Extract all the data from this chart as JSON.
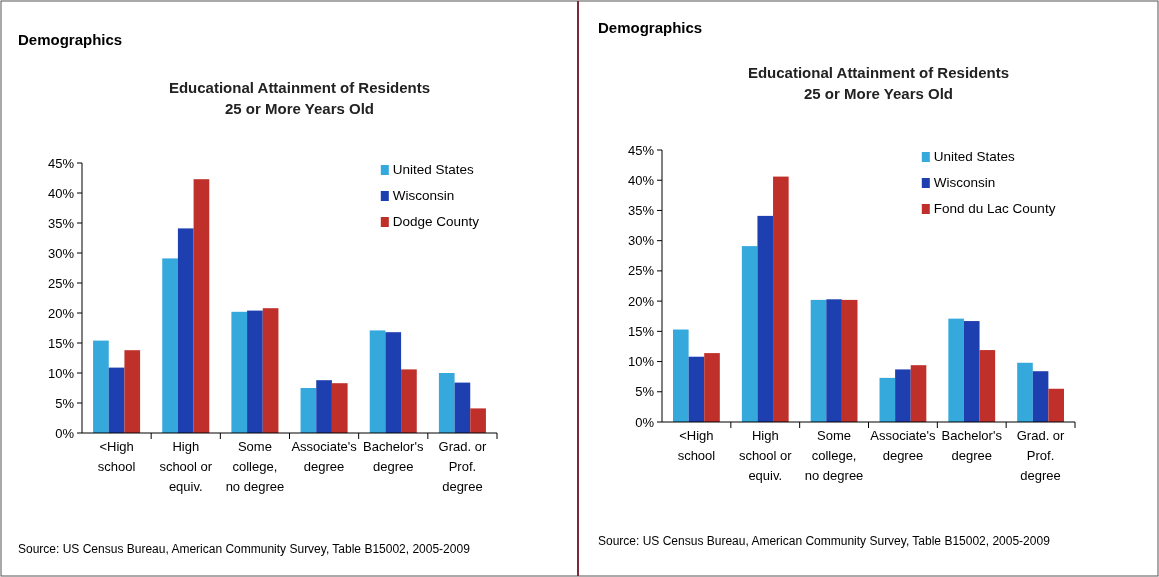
{
  "chart_data": [
    {
      "type": "bar",
      "subtitle": "Demographics",
      "title": "Educational Attainment of Residents\n25 or More Years Old",
      "categories": [
        "<High school",
        "High school or equiv.",
        "Some college, no degree",
        "Associate's degree",
        "Bachelor's degree",
        "Grad. or Prof. degree"
      ],
      "series": [
        {
          "name": "United States",
          "color": "#35a9dc",
          "values": [
            15.4,
            29.1,
            20.2,
            7.5,
            17.1,
            10.0
          ]
        },
        {
          "name": "Wisconsin",
          "color": "#1d3faf",
          "values": [
            10.9,
            34.1,
            20.4,
            8.8,
            16.8,
            8.4
          ]
        },
        {
          "name": "Dodge County",
          "color": "#c0302a",
          "values": [
            13.8,
            42.3,
            20.8,
            8.3,
            10.6,
            4.1
          ]
        }
      ],
      "ylim": [
        0,
        45
      ],
      "yticks": [
        {
          "value": 0,
          "label": "0%"
        },
        {
          "value": 5,
          "label": "5%"
        },
        {
          "value": 10,
          "label": "10%"
        },
        {
          "value": 15,
          "label": "15%"
        },
        {
          "value": 20,
          "label": "20%"
        },
        {
          "value": 25,
          "label": "25%"
        },
        {
          "value": 30,
          "label": "30%"
        },
        {
          "value": 35,
          "label": "35%"
        },
        {
          "value": 40,
          "label": "40%"
        },
        {
          "value": 45,
          "label": "45%"
        }
      ],
      "grid": false,
      "legend": "top right",
      "annotations": [
        "Source: US Census Bureau, American Community Survey, Table B15002, 2005-2009"
      ]
    },
    {
      "type": "bar",
      "subtitle": "Demographics",
      "title": "Educational Attainment of Residents\n25 or More Years Old",
      "categories": [
        "<High school",
        "High school or equiv.",
        "Some college, no degree",
        "Associate's degree",
        "Bachelor's degree",
        "Grad. or Prof. degree"
      ],
      "series": [
        {
          "name": "United States",
          "color": "#35a9dc",
          "values": [
            15.3,
            29.1,
            20.2,
            7.3,
            17.1,
            9.8
          ]
        },
        {
          "name": "Wisconsin",
          "color": "#1d3faf",
          "values": [
            10.8,
            34.1,
            20.3,
            8.7,
            16.7,
            8.4
          ]
        },
        {
          "name": "Fond du Lac County",
          "color": "#c0302a",
          "values": [
            11.4,
            40.6,
            20.2,
            9.4,
            11.9,
            5.5
          ]
        }
      ],
      "ylim": [
        0,
        45
      ],
      "yticks": [
        {
          "value": 0,
          "label": "0%"
        },
        {
          "value": 5,
          "label": "5%"
        },
        {
          "value": 10,
          "label": "10%"
        },
        {
          "value": 15,
          "label": "15%"
        },
        {
          "value": 20,
          "label": "20%"
        },
        {
          "value": 25,
          "label": "25%"
        },
        {
          "value": 30,
          "label": "30%"
        },
        {
          "value": 35,
          "label": "35%"
        },
        {
          "value": 40,
          "label": "40%"
        },
        {
          "value": 45,
          "label": "45%"
        }
      ],
      "grid": false,
      "legend": "top right",
      "annotations": [
        "Source: US Census Bureau, American Community Survey, Table B15002, 2005-2009"
      ]
    }
  ]
}
